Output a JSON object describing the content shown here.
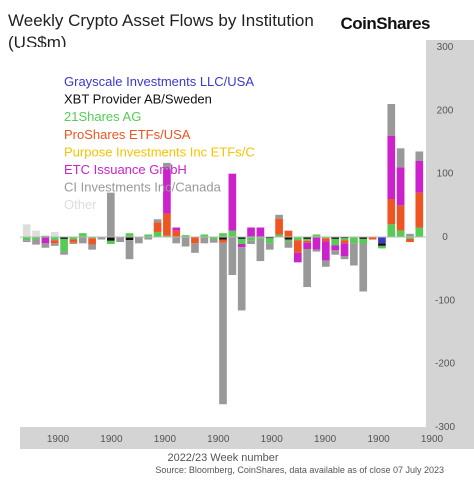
{
  "header": {
    "title_line1": "Weekly Crypto Asset Flows  by Institution",
    "title_line2": "(US$m)",
    "brand": "CoinShares"
  },
  "chart_data": {
    "type": "bar",
    "stacked": true,
    "xlabel": "2022/23  Week number",
    "source": "Source: Bloomberg, CoinShares, data available as of close 07 July 2023",
    "ylim": [
      -300,
      300
    ],
    "yticks": [
      -300,
      -200,
      -100,
      0,
      100,
      200,
      300
    ],
    "x_tick_labels": [
      "1900",
      "1900",
      "1900",
      "1900",
      "1900",
      "1900",
      "1900",
      "1900"
    ],
    "grid": false,
    "legend_position": "top-left",
    "series": [
      {
        "name": "Grayscale Investments LLC/USA",
        "color": "#3a3ac8",
        "values": [
          0,
          0,
          0,
          0,
          0,
          0,
          0,
          0,
          0,
          0,
          0,
          0,
          0,
          0,
          0,
          0,
          0,
          0,
          0,
          0,
          0,
          0,
          0,
          0,
          0,
          0,
          0,
          0,
          0,
          0,
          0,
          0,
          0,
          0,
          0,
          0,
          0,
          0,
          -10,
          0,
          0,
          0,
          0
        ]
      },
      {
        "name": "XBT Provider AB/Sweden",
        "color": "#111111",
        "values": [
          0,
          0,
          0,
          0,
          -3,
          0,
          0,
          0,
          0,
          -6,
          0,
          -5,
          0,
          0,
          0,
          0,
          0,
          0,
          0,
          0,
          0,
          -4,
          0,
          -3,
          0,
          0,
          -2,
          0,
          -4,
          0,
          -3,
          0,
          0,
          -3,
          -2,
          0,
          -3,
          0,
          -4,
          0,
          0,
          0,
          0
        ]
      },
      {
        "name": "21Shares AG",
        "color": "#55cc55",
        "values": [
          -5,
          -4,
          2,
          -5,
          -20,
          -4,
          6,
          -2,
          0,
          -5,
          0,
          6,
          0,
          4,
          8,
          2,
          0,
          3,
          0,
          4,
          -4,
          6,
          10,
          -8,
          -6,
          -3,
          -8,
          4,
          -3,
          -5,
          -3,
          4,
          -2,
          -10,
          -3,
          -10,
          -8,
          0,
          -4,
          20,
          10,
          -3,
          15
        ]
      },
      {
        "name": "ProShares ETFs/USA",
        "color": "#ee5522",
        "values": [
          0,
          0,
          0,
          -5,
          0,
          -5,
          0,
          -10,
          0,
          0,
          0,
          0,
          0,
          0,
          15,
          35,
          10,
          0,
          -10,
          0,
          0,
          -5,
          0,
          0,
          0,
          0,
          0,
          25,
          10,
          -20,
          -3,
          0,
          -5,
          0,
          -5,
          0,
          0,
          -4,
          0,
          40,
          40,
          -5,
          55
        ]
      },
      {
        "name": "Purpose Investments Inc ETFs/C",
        "color": "#f5c400",
        "values": [
          0,
          0,
          0,
          0,
          0,
          0,
          0,
          0,
          0,
          0,
          0,
          0,
          0,
          0,
          0,
          0,
          0,
          0,
          0,
          0,
          0,
          0,
          0,
          0,
          0,
          0,
          0,
          0,
          0,
          0,
          0,
          0,
          0,
          0,
          0,
          0,
          0,
          0,
          0,
          0,
          0,
          0,
          0
        ]
      },
      {
        "name": "ETC Issuance GmbH",
        "color": "#cc22cc",
        "values": [
          0,
          0,
          -10,
          0,
          0,
          0,
          0,
          0,
          0,
          0,
          0,
          0,
          0,
          0,
          0,
          70,
          5,
          0,
          0,
          0,
          0,
          0,
          90,
          -5,
          15,
          15,
          0,
          0,
          0,
          -15,
          -10,
          -20,
          -30,
          -8,
          -20,
          0,
          0,
          0,
          0,
          100,
          60,
          0,
          50
        ]
      },
      {
        "name": "CI Investments Inc/Canada",
        "color": "#999999",
        "values": [
          -3,
          -8,
          -7,
          -4,
          -5,
          -2,
          -10,
          -8,
          -4,
          70,
          -8,
          -30,
          -10,
          -4,
          5,
          10,
          -10,
          -15,
          -15,
          -10,
          -5,
          -255,
          -60,
          -100,
          -5,
          -35,
          -10,
          6,
          -10,
          0,
          -60,
          -3,
          -10,
          -7,
          -5,
          -35,
          -75,
          0,
          0,
          50,
          30,
          5,
          15
        ]
      },
      {
        "name": "Other",
        "color": "#dddddd",
        "values": [
          20,
          10,
          0,
          8,
          0,
          0,
          0,
          0,
          0,
          0,
          0,
          0,
          0,
          0,
          0,
          0,
          0,
          0,
          0,
          0,
          0,
          0,
          0,
          0,
          0,
          0,
          0,
          0,
          0,
          0,
          0,
          0,
          0,
          0,
          0,
          0,
          0,
          0,
          0,
          0,
          0,
          0,
          0
        ]
      }
    ]
  }
}
